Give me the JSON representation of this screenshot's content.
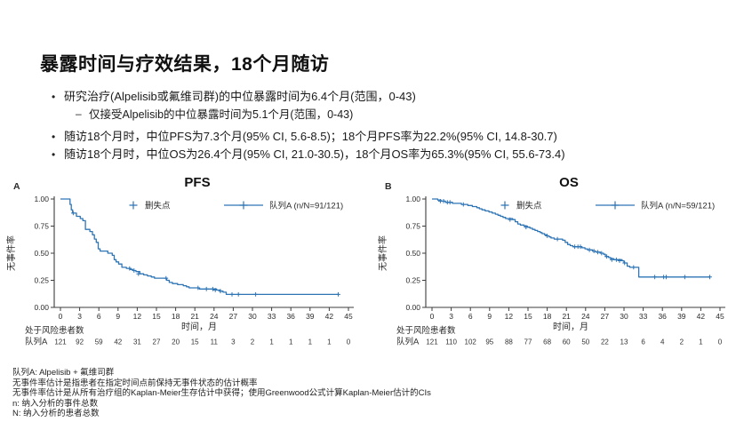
{
  "slide": {
    "title": "暴露时间与疗效结果，18个月随访",
    "bullets": [
      {
        "level": 1,
        "text": "研究治疗(Alpelisib或氟维司群)的中位暴露时间为6.4个月(范围，0-43)"
      },
      {
        "level": 2,
        "text": "仅接受Alpelisib的中位暴露时间为5.1个月(范围，0-43)"
      },
      {
        "level": 1,
        "text": "随访18个月时，中位PFS为7.3个月(95% CI, 5.6-8.5)；18个月PFS率为22.2%(95% CI, 14.8-30.7)"
      },
      {
        "level": 1,
        "text": "随访18个月时，中位OS为26.4个月(95% CI, 21.0-30.5)，18个月OS率为65.3%(95% CI, 55.6-73.4)"
      }
    ],
    "footnotes": [
      "队列A: Alpelisib + 氟维司群",
      "无事件率估计是指患者在指定时间点前保持无事件状态的估计概率",
      "无事件率估计是从所有治疗组的Kaplan-Meier生存估计中获得；使用Greenwood公式计算Kaplan-Meier估计的CIs",
      "n: 纳入分析的事件总数",
      "N: 纳入分析的患者总数"
    ]
  },
  "chart_data": [
    {
      "type": "line",
      "subtype": "kaplan-meier-step",
      "panel_label": "A",
      "title": "PFS",
      "xlabel": "时间，月",
      "ylabel": "无事件率",
      "xlim": [
        0,
        45
      ],
      "ylim": [
        0,
        1
      ],
      "xticks": [
        0,
        3,
        6,
        9,
        12,
        15,
        18,
        21,
        24,
        27,
        30,
        33,
        36,
        39,
        42,
        45
      ],
      "yticks": [
        0,
        0.25,
        0.5,
        0.75,
        1
      ],
      "line_color": "#2e75b6",
      "legend": {
        "censor_label": "删失点",
        "series_label": "队列A (n/N=91/121)"
      },
      "steps": [
        [
          0,
          1.0
        ],
        [
          1.5,
          0.95
        ],
        [
          1.7,
          0.9
        ],
        [
          1.9,
          0.87
        ],
        [
          2.5,
          0.84
        ],
        [
          3.1,
          0.82
        ],
        [
          3.5,
          0.8
        ],
        [
          3.9,
          0.72
        ],
        [
          4.6,
          0.7
        ],
        [
          5.0,
          0.67
        ],
        [
          5.3,
          0.63
        ],
        [
          5.6,
          0.6
        ],
        [
          5.9,
          0.54
        ],
        [
          6.2,
          0.52
        ],
        [
          7.4,
          0.5
        ],
        [
          8.1,
          0.48
        ],
        [
          8.4,
          0.44
        ],
        [
          8.7,
          0.42
        ],
        [
          9.1,
          0.4
        ],
        [
          9.6,
          0.37
        ],
        [
          10.3,
          0.36
        ],
        [
          10.9,
          0.35
        ],
        [
          11.3,
          0.34
        ],
        [
          11.8,
          0.33
        ],
        [
          12.4,
          0.31
        ],
        [
          13.0,
          0.3
        ],
        [
          13.6,
          0.29
        ],
        [
          14.2,
          0.28
        ],
        [
          14.7,
          0.27
        ],
        [
          16.6,
          0.25
        ],
        [
          17.0,
          0.23
        ],
        [
          17.5,
          0.22
        ],
        [
          18.3,
          0.21
        ],
        [
          19.2,
          0.2
        ],
        [
          19.7,
          0.19
        ],
        [
          20.1,
          0.18
        ],
        [
          21.7,
          0.17
        ],
        [
          24.4,
          0.16
        ],
        [
          24.9,
          0.15
        ],
        [
          25.4,
          0.14
        ],
        [
          25.9,
          0.12
        ],
        [
          43.5,
          0.12
        ]
      ],
      "censors": [
        [
          2.0,
          0.87
        ],
        [
          10.8,
          0.36
        ],
        [
          11.5,
          0.34
        ],
        [
          12.2,
          0.31
        ],
        [
          16.5,
          0.27
        ],
        [
          21.5,
          0.18
        ],
        [
          22.8,
          0.17
        ],
        [
          23.8,
          0.17
        ],
        [
          24.2,
          0.16
        ],
        [
          25.0,
          0.15
        ],
        [
          26.8,
          0.12
        ],
        [
          27.8,
          0.12
        ],
        [
          30.5,
          0.12
        ],
        [
          43.4,
          0.12
        ]
      ],
      "risk_table": {
        "title": "处于风险患者数",
        "row_label": "队列A",
        "counts": [
          121,
          92,
          59,
          42,
          31,
          27,
          20,
          15,
          11,
          3,
          2,
          1,
          1,
          1,
          1,
          0
        ]
      }
    },
    {
      "type": "line",
      "subtype": "kaplan-meier-step",
      "panel_label": "B",
      "title": "OS",
      "xlabel": "时间，月",
      "ylabel": "无事件率",
      "xlim": [
        0,
        45
      ],
      "ylim": [
        0,
        1
      ],
      "xticks": [
        0,
        3,
        6,
        9,
        12,
        15,
        18,
        21,
        24,
        27,
        30,
        33,
        36,
        39,
        42,
        45
      ],
      "yticks": [
        0,
        0.25,
        0.5,
        0.75,
        1
      ],
      "line_color": "#2e75b6",
      "legend": {
        "censor_label": "删失点",
        "series_label": "队列A (n/N=59/121)"
      },
      "steps": [
        [
          0,
          1.0
        ],
        [
          0.9,
          0.99
        ],
        [
          1.4,
          0.98
        ],
        [
          2.1,
          0.97
        ],
        [
          3.2,
          0.96
        ],
        [
          4.6,
          0.95
        ],
        [
          5.6,
          0.94
        ],
        [
          6.3,
          0.93
        ],
        [
          7.0,
          0.92
        ],
        [
          7.4,
          0.91
        ],
        [
          7.8,
          0.9
        ],
        [
          8.3,
          0.89
        ],
        [
          8.9,
          0.88
        ],
        [
          9.4,
          0.87
        ],
        [
          9.9,
          0.86
        ],
        [
          10.3,
          0.85
        ],
        [
          10.7,
          0.84
        ],
        [
          11.1,
          0.83
        ],
        [
          11.5,
          0.82
        ],
        [
          12.6,
          0.81
        ],
        [
          13.0,
          0.79
        ],
        [
          13.4,
          0.77
        ],
        [
          13.8,
          0.76
        ],
        [
          14.4,
          0.75
        ],
        [
          14.9,
          0.74
        ],
        [
          15.3,
          0.73
        ],
        [
          15.7,
          0.72
        ],
        [
          16.1,
          0.71
        ],
        [
          16.5,
          0.7
        ],
        [
          16.9,
          0.69
        ],
        [
          17.2,
          0.68
        ],
        [
          17.6,
          0.67
        ],
        [
          17.9,
          0.66
        ],
        [
          18.3,
          0.65
        ],
        [
          18.6,
          0.64
        ],
        [
          19.1,
          0.63
        ],
        [
          20.4,
          0.62
        ],
        [
          20.8,
          0.6
        ],
        [
          21.2,
          0.58
        ],
        [
          21.6,
          0.57
        ],
        [
          22.0,
          0.56
        ],
        [
          23.4,
          0.55
        ],
        [
          23.9,
          0.54
        ],
        [
          24.3,
          0.53
        ],
        [
          25.1,
          0.52
        ],
        [
          25.6,
          0.51
        ],
        [
          26.3,
          0.5
        ],
        [
          26.8,
          0.49
        ],
        [
          27.1,
          0.47
        ],
        [
          27.6,
          0.46
        ],
        [
          27.9,
          0.45
        ],
        [
          28.4,
          0.44
        ],
        [
          29.7,
          0.43
        ],
        [
          30.0,
          0.41
        ],
        [
          30.5,
          0.38
        ],
        [
          30.9,
          0.37
        ],
        [
          32.3,
          0.28
        ],
        [
          43.5,
          0.28
        ]
      ],
      "censors": [
        [
          1.3,
          0.98
        ],
        [
          1.8,
          0.98
        ],
        [
          2.4,
          0.97
        ],
        [
          2.8,
          0.97
        ],
        [
          4.9,
          0.95
        ],
        [
          12.2,
          0.81
        ],
        [
          14.7,
          0.74
        ],
        [
          18.0,
          0.66
        ],
        [
          19.6,
          0.63
        ],
        [
          22.3,
          0.56
        ],
        [
          22.8,
          0.56
        ],
        [
          23.2,
          0.56
        ],
        [
          24.6,
          0.53
        ],
        [
          25.3,
          0.52
        ],
        [
          25.9,
          0.51
        ],
        [
          26.5,
          0.5
        ],
        [
          27.3,
          0.47
        ],
        [
          28.1,
          0.44
        ],
        [
          28.8,
          0.44
        ],
        [
          29.3,
          0.43
        ],
        [
          30.1,
          0.41
        ],
        [
          31.5,
          0.37
        ],
        [
          34.8,
          0.28
        ],
        [
          36.2,
          0.28
        ],
        [
          36.6,
          0.28
        ],
        [
          39.5,
          0.28
        ],
        [
          43.4,
          0.28
        ]
      ],
      "risk_table": {
        "title": "处于风险患者数",
        "row_label": "队列A",
        "counts": [
          121,
          110,
          102,
          95,
          88,
          77,
          68,
          60,
          50,
          22,
          13,
          6,
          4,
          2,
          1,
          0
        ]
      }
    }
  ]
}
